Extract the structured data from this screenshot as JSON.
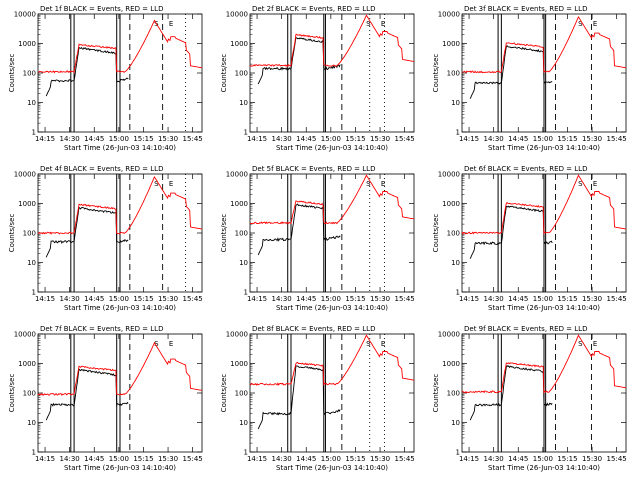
{
  "chart_data": {
    "type": "line",
    "layout": "3x3 grid",
    "xlabel": "Start Time (26-Jun-03 14:10:40)",
    "ylabel": "Counts/sec",
    "yscale": "log",
    "ylim": [
      1,
      10000
    ],
    "yticks": [
      "1",
      "10",
      "100",
      "1000",
      "10000"
    ],
    "xlim_minutes": [
      0,
      100
    ],
    "xtick_labels": [
      "14:15",
      "14:30",
      "14:45",
      "15:00",
      "15:15",
      "15:30",
      "15:45"
    ],
    "xtick_minutes": [
      4.3,
      19.3,
      34.3,
      49.3,
      64.3,
      79.3,
      94.3
    ],
    "markers": {
      "S": 72,
      "E": 81
    },
    "series_legend": [
      {
        "name": "Events",
        "color": "#000000"
      },
      {
        "name": "LLD",
        "color": "#ff0000"
      }
    ],
    "panels": [
      {
        "title": "Det 1f BLACK = Events, RED = LLD",
        "attenuator_lines": [
          20,
          22,
          48,
          50
        ],
        "dashed_lines": [
          56,
          76
        ],
        "dotted_lines": [
          90
        ],
        "lld_base": 110,
        "events_base": 55,
        "lld_peak": 6000,
        "events_plateau": 700
      },
      {
        "title": "Det 2f BLACK = Events, RED = LLD",
        "attenuator_lines": [
          23,
          25,
          45,
          46
        ],
        "dashed_lines": [
          56
        ],
        "dotted_lines": [
          73,
          82
        ],
        "lld_base": 180,
        "events_base": 140,
        "lld_peak": 9000,
        "events_plateau": 1500
      },
      {
        "title": "Det 3f BLACK = Events, RED = LLD",
        "attenuator_lines": [
          22,
          24,
          50,
          51
        ],
        "dashed_lines": [
          57,
          79
        ],
        "dotted_lines": [],
        "lld_base": 110,
        "events_base": 45,
        "lld_peak": 8000,
        "events_plateau": 800
      },
      {
        "title": "Det 4f BLACK = Events, RED = LLD",
        "attenuator_lines": [
          20,
          22,
          48,
          50
        ],
        "dashed_lines": [
          56,
          76
        ],
        "dotted_lines": [
          90
        ],
        "lld_base": 100,
        "events_base": 50,
        "lld_peak": 8000,
        "events_plateau": 700
      },
      {
        "title": "Det 5f BLACK = Events, RED = LLD",
        "attenuator_lines": [
          23,
          25,
          45,
          46
        ],
        "dashed_lines": [
          56
        ],
        "dotted_lines": [
          73,
          82
        ],
        "lld_base": 220,
        "events_base": 60,
        "lld_peak": 9000,
        "events_plateau": 900
      },
      {
        "title": "Det 6f BLACK = Events, RED = LLD",
        "attenuator_lines": [
          22,
          24,
          50,
          51
        ],
        "dashed_lines": [
          57,
          79
        ],
        "dotted_lines": [],
        "lld_base": 100,
        "events_base": 45,
        "lld_peak": 9000,
        "events_plateau": 800
      },
      {
        "title": "Det 7f BLACK = Events, RED = LLD",
        "attenuator_lines": [
          20,
          22,
          48,
          50
        ],
        "dashed_lines": [
          56
        ],
        "dotted_lines": [],
        "lld_base": 90,
        "events_base": 40,
        "lld_peak": 5000,
        "events_plateau": 600
      },
      {
        "title": "Det 8f BLACK = Events, RED = LLD",
        "attenuator_lines": [
          23,
          25,
          45,
          46
        ],
        "dashed_lines": [
          56
        ],
        "dotted_lines": [
          73,
          82
        ],
        "lld_base": 200,
        "events_base": 20,
        "lld_peak": 9000,
        "events_plateau": 800
      },
      {
        "title": "Det 9f BLACK = Events, RED = LLD",
        "attenuator_lines": [
          22,
          24,
          50,
          51
        ],
        "dashed_lines": [
          57,
          79
        ],
        "dotted_lines": [],
        "lld_base": 110,
        "events_base": 40,
        "lld_peak": 9000,
        "events_plateau": 800
      }
    ]
  },
  "labels": {
    "start_marker": "S",
    "end_marker": "E"
  }
}
